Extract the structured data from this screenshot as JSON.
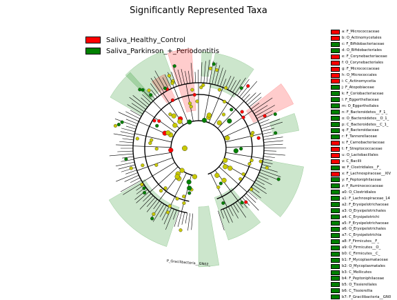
{
  "chart_data": {
    "type": "cladogram",
    "title": "Significantly Represented Taxa",
    "legend_placement": "top-left",
    "classes": [
      {
        "name": "Saliva_Healthy_Control",
        "color": "#ff0000"
      },
      {
        "name": "Saliva_Parkinson_+_Periodontitis",
        "color": "#008000"
      }
    ],
    "taxa": [
      {
        "key": "a",
        "label": "F_Micrococcaceae",
        "class": 0
      },
      {
        "key": "b",
        "label": "O_Actinomycetales",
        "class": 0
      },
      {
        "key": "c",
        "label": "F_Bifidobacteriaceae",
        "class": 1
      },
      {
        "key": "d",
        "label": "O_Bifidobacteriales",
        "class": 1
      },
      {
        "key": "e",
        "label": "F_Corynebacteriaceae",
        "class": 0
      },
      {
        "key": "f",
        "label": "O_Corynebacteriales",
        "class": 0
      },
      {
        "key": "g",
        "label": "F_Micrococcaceae",
        "class": 0
      },
      {
        "key": "h",
        "label": "O_Micrococcales",
        "class": 0
      },
      {
        "key": "i",
        "label": "C_Actinomycetia",
        "class": 0
      },
      {
        "key": "j",
        "label": "F_Atopobiaceae",
        "class": 1
      },
      {
        "key": "k",
        "label": "F_Coriobacteriaceae",
        "class": 1
      },
      {
        "key": "l",
        "label": "F_Eggerthellaceae",
        "class": 1
      },
      {
        "key": "m",
        "label": "O_Eggerthellales",
        "class": 1
      },
      {
        "key": "n",
        "label": "F_Bacteroidetes__F_1_",
        "class": 1
      },
      {
        "key": "o",
        "label": "O_Bacteroidetes__O_1_",
        "class": 1
      },
      {
        "key": "p",
        "label": "C_Bacteroidetes__C_1_",
        "class": 1
      },
      {
        "key": "q",
        "label": "F_Bacteroidaceae",
        "class": 1
      },
      {
        "key": "r",
        "label": "F_Tannerellaceae",
        "class": 1
      },
      {
        "key": "s",
        "label": "F_Carnobacteriaceae",
        "class": 0
      },
      {
        "key": "t",
        "label": "F_Streptococcaceae",
        "class": 0
      },
      {
        "key": "u",
        "label": "O_Lactobacillales",
        "class": 0
      },
      {
        "key": "v",
        "label": "C_Bacilli",
        "class": 0
      },
      {
        "key": "w",
        "label": "F_Clostridiales__F_",
        "class": 1
      },
      {
        "key": "x",
        "label": "F_Lachnospiraceae__XIV",
        "class": 0
      },
      {
        "key": "y",
        "label": "F_Peptoniphilaceae",
        "class": 1
      },
      {
        "key": "z",
        "label": "F_Ruminococcaceae",
        "class": 1
      },
      {
        "key": "a0",
        "label": "O_Clostridiales",
        "class": 1
      },
      {
        "key": "a1",
        "label": "F_Lachnospiraceae_14",
        "class": 1
      },
      {
        "key": "a2",
        "label": "F_Erysipelotrichaceae",
        "class": 1
      },
      {
        "key": "a3",
        "label": "O_Erysipelotrichales",
        "class": 1
      },
      {
        "key": "a4",
        "label": "C_Erysipelotrichi",
        "class": 1
      },
      {
        "key": "a5",
        "label": "F_Erysipelotrichaceae",
        "class": 1
      },
      {
        "key": "a6",
        "label": "O_Erysipelotrichales",
        "class": 1
      },
      {
        "key": "a7",
        "label": "C_Erysipelotrichia",
        "class": 1
      },
      {
        "key": "a8",
        "label": "F_Firmicutes__F_",
        "class": 1
      },
      {
        "key": "a9",
        "label": "O_Firmicutes__O_",
        "class": 1
      },
      {
        "key": "b0",
        "label": "C_Firmicutes__C_",
        "class": 1
      },
      {
        "key": "b1",
        "label": "F_Mycoplasmataceae",
        "class": 1
      },
      {
        "key": "b2",
        "label": "O_Mycoplasmatales",
        "class": 1
      },
      {
        "key": "b3",
        "label": "C_Mollicutes",
        "class": 1
      },
      {
        "key": "b4",
        "label": "F_Peptoniphilaceae",
        "class": 1
      },
      {
        "key": "b5",
        "label": "O_Tissierellales",
        "class": 1
      },
      {
        "key": "b6",
        "label": "C_Tissierellia",
        "class": 1
      },
      {
        "key": "b7",
        "label": "F_Gracilibacteria__GN0",
        "class": 1
      }
    ],
    "phylum_labels": [
      "P_Gracilibacteria__GN02_"
    ]
  }
}
